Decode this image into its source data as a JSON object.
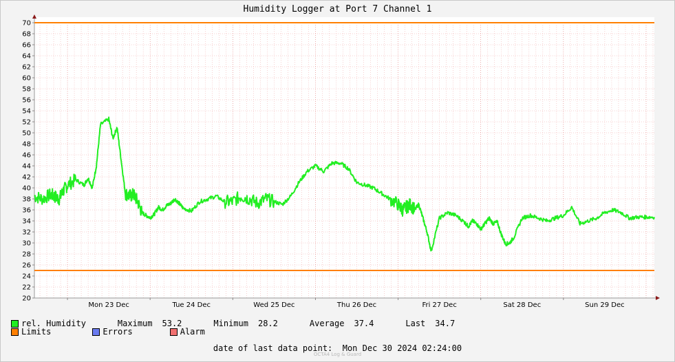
{
  "title": "Humidity Logger at Port 7 Channel 1",
  "legend": {
    "humidity": {
      "label": "rel. Humidity",
      "color": "#22ee22"
    },
    "limits": {
      "label": "Limits",
      "color": "#ff7f00"
    },
    "errors": {
      "label": "Errors",
      "color": "#6a7bf0"
    },
    "alarm": {
      "label": "Alarm",
      "color": "#f07070"
    }
  },
  "stats": {
    "maximum_label": "Maximum",
    "maximum": "53.2",
    "minimum_label": "Minimum",
    "minimum": "28.2",
    "average_label": "Average",
    "average": "37.4",
    "last_label": "Last",
    "last": "34.7"
  },
  "last_data_point": {
    "label": "date of last data point:",
    "value": "Mon Dec 30 2024 02:24:00"
  },
  "watermark": "OCTA4 Log & Guard",
  "chart_data": {
    "type": "line",
    "ylim": [
      20,
      70
    ],
    "yticks": [
      "20",
      "22",
      "24",
      "26",
      "28",
      "30",
      "32",
      "34",
      "36",
      "38",
      "40",
      "42",
      "44",
      "46",
      "48",
      "50",
      "52",
      "54",
      "56",
      "58",
      "60",
      "62",
      "64",
      "66",
      "68",
      "70"
    ],
    "xticks": [
      "Mon 23 Dec",
      "Tue 24 Dec",
      "Wed 25 Dec",
      "Thu 26 Dec",
      "Fri 27 Dec",
      "Sat 28 Dec",
      "Sun 29 Dec"
    ],
    "xlim_days": [
      22.6,
      30.1
    ],
    "limits": {
      "upper": 70,
      "lower": 25
    },
    "series": [
      {
        "name": "rel. Humidity",
        "x": [
          22.6,
          22.7,
          22.8,
          22.85,
          22.9,
          22.95,
          23.0,
          23.1,
          23.2,
          23.25,
          23.3,
          23.35,
          23.4,
          23.5,
          23.55,
          23.6,
          23.65,
          23.7,
          23.75,
          23.8,
          23.85,
          23.9,
          23.95,
          24.0,
          24.05,
          24.1,
          24.15,
          24.2,
          24.25,
          24.3,
          24.35,
          24.4,
          24.5,
          24.6,
          24.7,
          24.8,
          24.9,
          25.0,
          25.1,
          25.2,
          25.3,
          25.4,
          25.5,
          25.6,
          25.7,
          25.8,
          25.9,
          26.0,
          26.1,
          26.2,
          26.3,
          26.4,
          26.5,
          26.6,
          26.7,
          26.8,
          26.9,
          27.0,
          27.05,
          27.1,
          27.15,
          27.2,
          27.25,
          27.3,
          27.35,
          27.4,
          27.5,
          27.6,
          27.7,
          27.8,
          27.85,
          27.9,
          27.95,
          28.0,
          28.05,
          28.1,
          28.15,
          28.2,
          28.25,
          28.3,
          28.35,
          28.4,
          28.5,
          28.6,
          28.7,
          28.8,
          28.9,
          29.0,
          29.1,
          29.2,
          29.3,
          29.4,
          29.5,
          29.6,
          29.7,
          29.8,
          29.9,
          30.0,
          30.1
        ],
        "y": [
          38.5,
          38.0,
          38.8,
          38.4,
          38.0,
          39.5,
          40.5,
          41.5,
          40.5,
          41.8,
          40.0,
          44.0,
          51.5,
          52.5,
          49.0,
          51.0,
          45.0,
          39.0,
          38.5,
          38.8,
          37.5,
          35.5,
          35.0,
          34.6,
          35.2,
          36.5,
          36.0,
          36.8,
          37.2,
          38.0,
          37.2,
          36.3,
          35.8,
          37.5,
          38.0,
          38.5,
          37.5,
          37.5,
          38.5,
          38.0,
          37.2,
          38.0,
          37.5,
          37.0,
          38.5,
          41.0,
          43.0,
          44.0,
          43.0,
          44.5,
          44.5,
          43.5,
          41.0,
          40.5,
          40.0,
          39.0,
          38.0,
          37.0,
          36.0,
          36.5,
          37.0,
          36.0,
          37.0,
          34.5,
          32.0,
          28.5,
          34.5,
          35.5,
          35.0,
          33.8,
          33.0,
          34.0,
          33.5,
          32.5,
          33.5,
          34.5,
          33.5,
          33.8,
          31.5,
          29.8,
          30.0,
          31.0,
          34.5,
          35.0,
          34.5,
          34.0,
          34.5,
          35.0,
          36.5,
          33.5,
          34.0,
          34.5,
          35.5,
          36.0,
          35.5,
          34.5,
          34.7,
          34.7,
          34.7
        ]
      }
    ]
  }
}
